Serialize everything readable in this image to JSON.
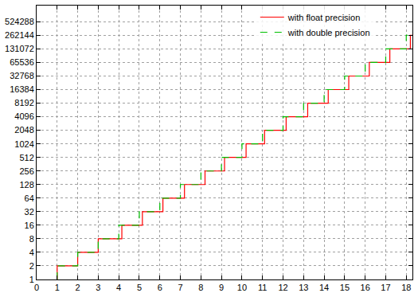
{
  "chart_data": {
    "type": "line",
    "log": "y",
    "grid": true,
    "legend": "upper right",
    "xlim": [
      0,
      18.3
    ],
    "ylim": [
      1,
      1200000
    ],
    "xticks": [
      0,
      1,
      2,
      3,
      4,
      5,
      6,
      7,
      8,
      9,
      10,
      11,
      12,
      13,
      14,
      15,
      16,
      17,
      18
    ],
    "yticks": [
      1,
      2,
      4,
      8,
      16,
      32,
      64,
      128,
      256,
      512,
      1024,
      2048,
      4096,
      8192,
      16384,
      32768,
      65536,
      131072,
      262144,
      524288
    ],
    "series": [
      {
        "name": "with float precision",
        "color": "#ff0000",
        "line_style": "solid",
        "x": [
          1,
          1,
          2,
          3,
          4.15,
          5.15,
          6.15,
          7.2,
          8.2,
          9.15,
          10.2,
          11.1,
          12.15,
          13.2,
          14.2,
          15.2,
          16.2,
          17.2,
          18.2,
          18.3
        ],
        "values": [
          1,
          2,
          4,
          8,
          16,
          32,
          64,
          128,
          256,
          512,
          1024,
          2048,
          4096,
          8192,
          16384,
          32768,
          65536,
          131072,
          262144,
          262144
        ]
      },
      {
        "name": "with double precision",
        "color": "#00c000",
        "line_style": "dash",
        "x": [
          1,
          1,
          2,
          3,
          4,
          5,
          6,
          7,
          8,
          9,
          10,
          11,
          12,
          13,
          14,
          15,
          16,
          17,
          18,
          18.3
        ],
        "values": [
          1,
          2,
          4,
          8,
          16,
          32,
          64,
          128,
          256,
          512,
          1024,
          2048,
          4096,
          8192,
          16384,
          32768,
          65536,
          131072,
          262144,
          262144
        ]
      }
    ]
  }
}
